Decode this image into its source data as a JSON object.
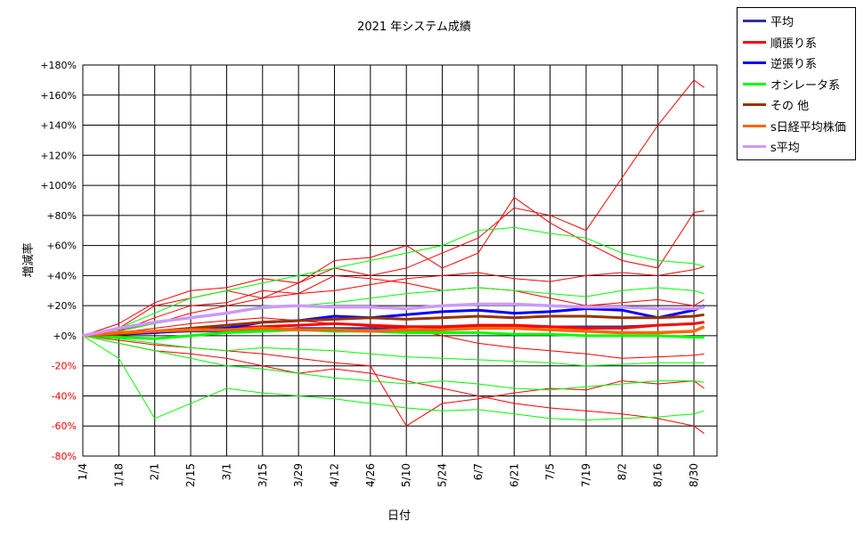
{
  "chart_data": {
    "type": "line",
    "title": "2021 年システム成績",
    "xlabel": "日付",
    "ylabel": "増減率",
    "ylim": [
      -80,
      180
    ],
    "y_ticks": [
      {
        "value": 180,
        "label": "+180%"
      },
      {
        "value": 160,
        "label": "+160%"
      },
      {
        "value": 140,
        "label": "+140%"
      },
      {
        "value": 120,
        "label": "+120%"
      },
      {
        "value": 100,
        "label": "+100%"
      },
      {
        "value": 80,
        "label": "+80%"
      },
      {
        "value": 60,
        "label": "+60%"
      },
      {
        "value": 40,
        "label": "+40%"
      },
      {
        "value": 20,
        "label": "+20%"
      },
      {
        "value": 0,
        "label": "+0%"
      },
      {
        "value": -20,
        "label": "-20%"
      },
      {
        "value": -40,
        "label": "-40%"
      },
      {
        "value": -60,
        "label": "-60%"
      },
      {
        "value": -80,
        "label": "-80%"
      }
    ],
    "x_ticks": [
      "1/4",
      "1/18",
      "2/1",
      "2/15",
      "3/1",
      "3/15",
      "3/29",
      "4/12",
      "4/26",
      "5/10",
      "5/24",
      "6/7",
      "6/21",
      "7/5",
      "7/19",
      "8/2",
      "8/16",
      "8/30"
    ],
    "grid": true,
    "legend_position": "top-right, outside plot",
    "legend": [
      {
        "label": "平均",
        "color": "#333399"
      },
      {
        "label": "順張り系",
        "color": "#ff0000"
      },
      {
        "label": "逆張り系",
        "color": "#0000ff"
      },
      {
        "label": "オシレータ系",
        "color": "#00ff00"
      },
      {
        "label": "その 他",
        "color": "#993300"
      },
      {
        "label": "s日経平均株価",
        "color": "#ff6600"
      },
      {
        "label": "s平均",
        "color": "#cc99ff"
      }
    ],
    "series": [
      {
        "name": "平均",
        "color": "#333399",
        "width": 2.5,
        "x": [
          "1/4",
          "1/18",
          "2/1",
          "2/15",
          "3/1",
          "3/15",
          "3/29",
          "4/12",
          "4/26",
          "5/10",
          "5/24",
          "6/7",
          "6/21",
          "7/5",
          "7/19",
          "8/2",
          "8/16",
          "8/30",
          "9/3"
        ],
        "values": [
          0,
          1,
          2,
          3,
          3,
          4,
          5,
          5,
          5,
          4,
          5,
          6,
          6,
          6,
          6,
          6,
          7,
          8,
          9
        ]
      },
      {
        "name": "順張り系",
        "color": "#ff0000",
        "width": 3,
        "x": [
          "1/4",
          "1/18",
          "2/1",
          "2/15",
          "3/1",
          "3/15",
          "3/29",
          "4/12",
          "4/26",
          "5/10",
          "5/24",
          "6/7",
          "6/21",
          "7/5",
          "7/19",
          "8/2",
          "8/16",
          "8/30",
          "9/3"
        ],
        "values": [
          0,
          2,
          2,
          4,
          5,
          6,
          7,
          8,
          7,
          6,
          6,
          7,
          7,
          6,
          5,
          5,
          7,
          8,
          9
        ]
      },
      {
        "name": "逆張り系",
        "color": "#0000ff",
        "width": 3,
        "x": [
          "1/4",
          "1/18",
          "2/1",
          "2/15",
          "3/1",
          "3/15",
          "3/29",
          "4/12",
          "4/26",
          "5/10",
          "5/24",
          "6/7",
          "6/21",
          "7/5",
          "7/19",
          "8/2",
          "8/16",
          "8/30",
          "9/3"
        ],
        "values": [
          0,
          1,
          2,
          4,
          5,
          9,
          10,
          13,
          12,
          14,
          16,
          17,
          15,
          16,
          18,
          17,
          12,
          17,
          20
        ]
      },
      {
        "name": "オシレータ系",
        "color": "#00ff00",
        "width": 3,
        "x": [
          "1/4",
          "1/18",
          "2/1",
          "2/15",
          "3/1",
          "3/15",
          "3/29",
          "4/12",
          "4/26",
          "5/10",
          "5/24",
          "6/7",
          "6/21",
          "7/5",
          "7/19",
          "8/2",
          "8/16",
          "8/30",
          "9/3"
        ],
        "values": [
          0,
          -1,
          -2,
          0,
          2,
          3,
          4,
          3,
          3,
          2,
          2,
          2,
          1,
          1,
          0,
          0,
          0,
          -1,
          -1
        ]
      },
      {
        "name": "その 他",
        "color": "#993300",
        "width": 3,
        "x": [
          "1/4",
          "1/18",
          "2/1",
          "2/15",
          "3/1",
          "3/15",
          "3/29",
          "4/12",
          "4/26",
          "5/10",
          "5/24",
          "6/7",
          "6/21",
          "7/5",
          "7/19",
          "8/2",
          "8/16",
          "8/30",
          "9/3"
        ],
        "values": [
          0,
          1,
          3,
          5,
          7,
          9,
          10,
          11,
          12,
          11,
          12,
          13,
          12,
          13,
          13,
          12,
          12,
          13,
          14
        ]
      },
      {
        "name": "s日経平均株価",
        "color": "#ff6600",
        "width": 3.5,
        "x": [
          "1/4",
          "1/18",
          "2/1",
          "2/15",
          "3/1",
          "3/15",
          "3/29",
          "4/12",
          "4/26",
          "5/10",
          "5/24",
          "6/7",
          "6/21",
          "7/5",
          "7/19",
          "8/2",
          "8/16",
          "8/30",
          "9/3"
        ],
        "values": [
          0,
          2,
          3,
          4,
          4,
          5,
          4,
          4,
          3,
          4,
          4,
          5,
          5,
          4,
          3,
          2,
          2,
          3,
          6
        ]
      },
      {
        "name": "s平均",
        "color": "#cc99ff",
        "width": 3.5,
        "x": [
          "1/4",
          "1/18",
          "2/1",
          "2/15",
          "3/1",
          "3/15",
          "3/29",
          "4/12",
          "4/26",
          "5/10",
          "5/24",
          "6/7",
          "6/21",
          "7/5",
          "7/19",
          "8/2",
          "8/16",
          "8/30",
          "9/3"
        ],
        "values": [
          0,
          5,
          9,
          12,
          15,
          19,
          20,
          19,
          19,
          18,
          20,
          21,
          21,
          20,
          19,
          19,
          18,
          18,
          19
        ]
      }
    ],
    "background_series": [
      {
        "color": "#ff0000",
        "x": [
          "1/4",
          "1/18",
          "2/1",
          "2/15",
          "3/1",
          "3/15",
          "3/29",
          "4/12",
          "4/26",
          "5/10",
          "5/24",
          "6/7",
          "6/21",
          "7/5",
          "7/19",
          "8/2",
          "8/16",
          "8/30",
          "9/3"
        ],
        "values": [
          0,
          5,
          20,
          25,
          30,
          25,
          35,
          45,
          40,
          45,
          55,
          65,
          85,
          80,
          70,
          105,
          140,
          170,
          165
        ]
      },
      {
        "color": "#ff0000",
        "x": [
          "1/4",
          "1/18",
          "2/1",
          "2/15",
          "3/1",
          "3/15",
          "3/29",
          "4/12",
          "4/26",
          "5/10",
          "5/24",
          "6/7",
          "6/21",
          "7/5",
          "7/19",
          "8/2",
          "8/16",
          "8/30",
          "9/3"
        ],
        "values": [
          0,
          8,
          22,
          30,
          32,
          38,
          35,
          50,
          52,
          60,
          45,
          55,
          92,
          75,
          62,
          50,
          45,
          82,
          83
        ]
      },
      {
        "color": "#ff0000",
        "x": [
          "1/4",
          "1/18",
          "2/1",
          "2/15",
          "3/1",
          "3/15",
          "3/29",
          "4/12",
          "4/26",
          "5/10",
          "5/24",
          "6/7",
          "6/21",
          "7/5",
          "7/19",
          "8/2",
          "8/16",
          "8/30",
          "9/3"
        ],
        "values": [
          0,
          3,
          12,
          20,
          22,
          30,
          28,
          40,
          38,
          35,
          30,
          32,
          30,
          25,
          20,
          22,
          24,
          20,
          24
        ]
      },
      {
        "color": "#ff0000",
        "x": [
          "1/4",
          "1/18",
          "2/1",
          "2/15",
          "3/1",
          "3/15",
          "3/29",
          "4/12",
          "4/26",
          "5/10",
          "5/24",
          "6/7",
          "6/21",
          "7/5",
          "7/19",
          "8/2",
          "8/16",
          "8/30",
          "9/3"
        ],
        "values": [
          0,
          -5,
          -10,
          -12,
          -15,
          -20,
          -25,
          -22,
          -25,
          -30,
          -35,
          -40,
          -45,
          -48,
          -50,
          -52,
          -55,
          -60,
          -65
        ]
      },
      {
        "color": "#ff0000",
        "x": [
          "1/4",
          "1/18",
          "2/1",
          "2/15",
          "3/1",
          "3/15",
          "3/29",
          "4/12",
          "4/26",
          "5/10",
          "5/24",
          "6/7",
          "6/21",
          "7/5",
          "7/19",
          "8/2",
          "8/16",
          "8/30",
          "9/3"
        ],
        "values": [
          0,
          -3,
          -6,
          -8,
          -10,
          -12,
          -15,
          -18,
          -20,
          -60,
          -45,
          -42,
          -38,
          -35,
          -36,
          -30,
          -32,
          -30,
          -35
        ]
      },
      {
        "color": "#ff0000",
        "x": [
          "1/4",
          "1/18",
          "2/1",
          "2/15",
          "3/1",
          "3/15",
          "3/29",
          "4/12",
          "4/26",
          "5/10",
          "5/24",
          "6/7",
          "6/21",
          "7/5",
          "7/19",
          "8/2",
          "8/16",
          "8/30",
          "9/3"
        ],
        "values": [
          0,
          2,
          5,
          8,
          10,
          12,
          10,
          8,
          6,
          5,
          0,
          -5,
          -8,
          -10,
          -12,
          -15,
          -14,
          -13,
          -12
        ]
      },
      {
        "color": "#ff0000",
        "x": [
          "1/4",
          "1/18",
          "2/1",
          "2/15",
          "3/1",
          "3/15",
          "3/29",
          "4/12",
          "4/26",
          "5/10",
          "5/24",
          "6/7",
          "6/21",
          "7/5",
          "7/19",
          "8/2",
          "8/16",
          "8/30",
          "9/3"
        ],
        "values": [
          0,
          4,
          8,
          15,
          20,
          25,
          28,
          30,
          34,
          38,
          40,
          42,
          38,
          36,
          40,
          42,
          40,
          44,
          46
        ]
      },
      {
        "color": "#00ff00",
        "x": [
          "1/4",
          "1/18",
          "2/1",
          "2/15",
          "3/1",
          "3/15",
          "3/29",
          "4/12",
          "4/26",
          "5/10",
          "5/24",
          "6/7",
          "6/21",
          "7/5",
          "7/19",
          "8/2",
          "8/16",
          "8/30",
          "9/3"
        ],
        "values": [
          0,
          -15,
          -55,
          -45,
          -35,
          -38,
          -40,
          -42,
          -45,
          -48,
          -50,
          -49,
          -52,
          -55,
          -56,
          -55,
          -54,
          -52,
          -50
        ]
      },
      {
        "color": "#00ff00",
        "x": [
          "1/4",
          "1/18",
          "2/1",
          "2/15",
          "3/1",
          "3/15",
          "3/29",
          "4/12",
          "4/26",
          "5/10",
          "5/24",
          "6/7",
          "6/21",
          "7/5",
          "7/19",
          "8/2",
          "8/16",
          "8/30",
          "9/3"
        ],
        "values": [
          0,
          5,
          15,
          25,
          30,
          35,
          40,
          45,
          50,
          55,
          60,
          70,
          72,
          68,
          65,
          55,
          50,
          48,
          46
        ]
      },
      {
        "color": "#00ff00",
        "x": [
          "1/4",
          "1/18",
          "2/1",
          "2/15",
          "3/1",
          "3/15",
          "3/29",
          "4/12",
          "4/26",
          "5/10",
          "5/24",
          "6/7",
          "6/21",
          "7/5",
          "7/19",
          "8/2",
          "8/16",
          "8/30",
          "9/3"
        ],
        "values": [
          0,
          -5,
          -10,
          -15,
          -20,
          -22,
          -25,
          -28,
          -30,
          -32,
          -30,
          -32,
          -35,
          -36,
          -34,
          -32,
          -30,
          -30,
          -31
        ]
      },
      {
        "color": "#00ff00",
        "x": [
          "1/4",
          "1/18",
          "2/1",
          "2/15",
          "3/1",
          "3/15",
          "3/29",
          "4/12",
          "4/26",
          "5/10",
          "5/24",
          "6/7",
          "6/21",
          "7/5",
          "7/19",
          "8/2",
          "8/16",
          "8/30",
          "9/3"
        ],
        "values": [
          0,
          3,
          8,
          12,
          15,
          18,
          20,
          22,
          25,
          28,
          30,
          32,
          30,
          28,
          26,
          30,
          32,
          30,
          28
        ]
      },
      {
        "color": "#00ff00",
        "x": [
          "1/4",
          "1/18",
          "2/1",
          "2/15",
          "3/1",
          "3/15",
          "3/29",
          "4/12",
          "4/26",
          "5/10",
          "5/24",
          "6/7",
          "6/21",
          "7/5",
          "7/19",
          "8/2",
          "8/16",
          "8/30",
          "9/3"
        ],
        "values": [
          0,
          -2,
          -5,
          -8,
          -10,
          -8,
          -9,
          -10,
          -12,
          -14,
          -15,
          -16,
          -17,
          -18,
          -20,
          -19,
          -18,
          -18,
          -18
        ]
      }
    ]
  }
}
